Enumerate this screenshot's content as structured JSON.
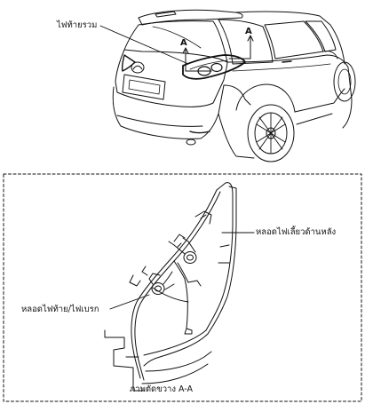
{
  "labels": {
    "rear_combination_lamp": "ไฟท้ายรวม",
    "section_mark_left": "A",
    "section_mark_right": "A",
    "rear_turn_bulb": "หลอดไฟเลี้ยวด้านหลัง",
    "tail_brake_bulb": "หลอดไฟท้าย/ไฟเบรก",
    "section_caption": "ภาพตัดขวาง A-A"
  }
}
